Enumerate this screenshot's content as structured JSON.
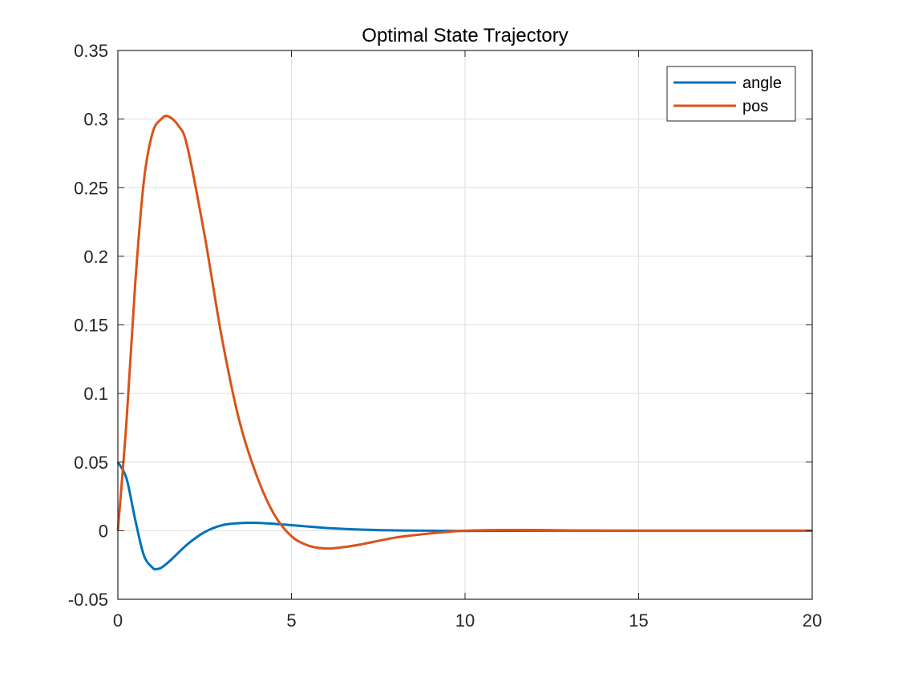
{
  "chart_data": {
    "type": "line",
    "title": "Optimal State Trajectory",
    "xlabel": "",
    "ylabel": "",
    "xlim": [
      0,
      20
    ],
    "ylim": [
      -0.05,
      0.35
    ],
    "xticks": [
      0,
      5,
      10,
      15,
      20
    ],
    "xtick_labels": [
      "0",
      "5",
      "10",
      "15",
      "20"
    ],
    "yticks": [
      -0.05,
      0,
      0.05,
      0.1,
      0.15,
      0.2,
      0.25,
      0.3,
      0.35
    ],
    "ytick_labels": [
      "-0.05",
      "0",
      "0.05",
      "0.1",
      "0.15",
      "0.2",
      "0.25",
      "0.3",
      "0.35"
    ],
    "grid": true,
    "legend_position": "top-right",
    "series": [
      {
        "name": "angle",
        "color": "#0072BD",
        "x": [
          0,
          0.25,
          0.5,
          0.75,
          1.0,
          1.1,
          1.25,
          1.5,
          2.0,
          2.5,
          3.0,
          3.5,
          4.0,
          4.5,
          5.0,
          5.5,
          6.0,
          7.0,
          8.0,
          9.0,
          10.0,
          12.0,
          15.0,
          20.0
        ],
        "y": [
          0.05,
          0.038,
          0.008,
          -0.018,
          -0.027,
          -0.028,
          -0.027,
          -0.022,
          -0.01,
          -0.001,
          0.004,
          0.0055,
          0.0057,
          0.005,
          0.004,
          0.003,
          0.002,
          0.0008,
          0.0002,
          0.0,
          -0.0002,
          0.0,
          0.0,
          0.0
        ]
      },
      {
        "name": "pos",
        "color": "#D95319",
        "x": [
          0,
          0.25,
          0.5,
          0.75,
          1.0,
          1.25,
          1.45,
          1.75,
          2.0,
          2.5,
          3.0,
          3.5,
          4.0,
          4.5,
          5.0,
          5.5,
          6.0,
          6.5,
          7.0,
          8.0,
          9.0,
          10.0,
          11.0,
          12.0,
          13.0,
          15.0,
          20.0
        ],
        "y": [
          0,
          0.08,
          0.18,
          0.255,
          0.29,
          0.3,
          0.302,
          0.295,
          0.28,
          0.215,
          0.14,
          0.08,
          0.04,
          0.012,
          -0.004,
          -0.011,
          -0.013,
          -0.012,
          -0.01,
          -0.005,
          -0.002,
          0.0,
          0.0005,
          0.0005,
          0.0002,
          0.0,
          0.0
        ]
      }
    ]
  }
}
